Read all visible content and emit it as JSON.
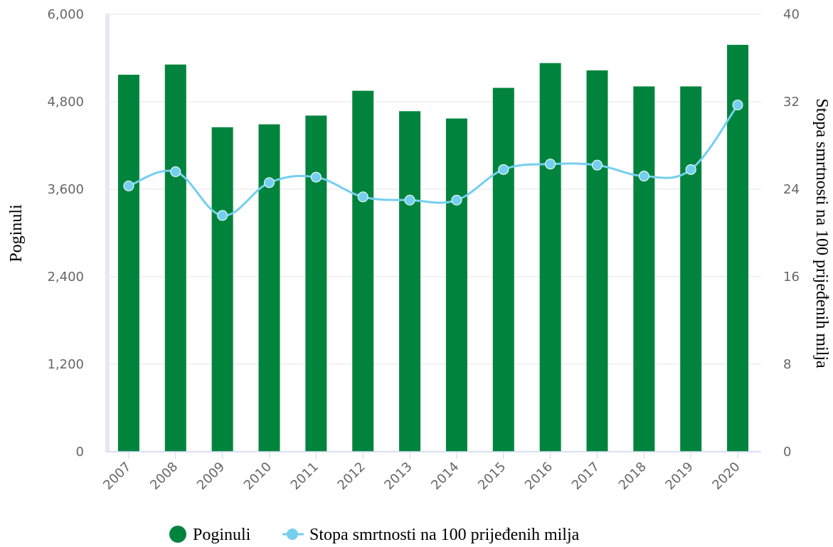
{
  "chart_data": {
    "type": "bar",
    "categories": [
      "2007",
      "2008",
      "2009",
      "2010",
      "2011",
      "2012",
      "2013",
      "2014",
      "2015",
      "2016",
      "2017",
      "2018",
      "2019",
      "2020"
    ],
    "series": [
      {
        "name": "Poginuli",
        "type": "bar",
        "axis": "left",
        "color": "#00843d",
        "values": [
          5170,
          5310,
          4450,
          4490,
          4610,
          4950,
          4670,
          4570,
          4990,
          5330,
          5230,
          5010,
          5010,
          5580
        ]
      },
      {
        "name": "Stopa smrtnosti na 100 pređenih milja",
        "type": "line",
        "axis": "right",
        "color": "#74cfee",
        "values": [
          24.3,
          25.6,
          21.6,
          24.6,
          25.1,
          23.3,
          23.0,
          23.0,
          25.8,
          26.3,
          26.2,
          25.2,
          25.8,
          31.7
        ]
      }
    ],
    "y_left": {
      "label": "Poginuli",
      "lim": [
        0,
        6000
      ],
      "ticks": [
        "0",
        "1,200",
        "2,400",
        "3,600",
        "4,800",
        "6,000"
      ],
      "tick_values": [
        0,
        1200,
        2400,
        3600,
        4800,
        6000
      ]
    },
    "y_right": {
      "label": "Stopa smrtnosti na 100 prijeđenih milja",
      "lim": [
        0,
        40
      ],
      "ticks": [
        "0",
        "8",
        "16",
        "24",
        "32",
        "40"
      ],
      "tick_values": [
        0,
        8,
        16,
        24,
        32,
        40
      ]
    },
    "legend": {
      "position": "bottom",
      "items": [
        "Poginuli",
        "Stopa smrtnosti na 100 prijeđenih milja"
      ]
    },
    "grid": true
  }
}
